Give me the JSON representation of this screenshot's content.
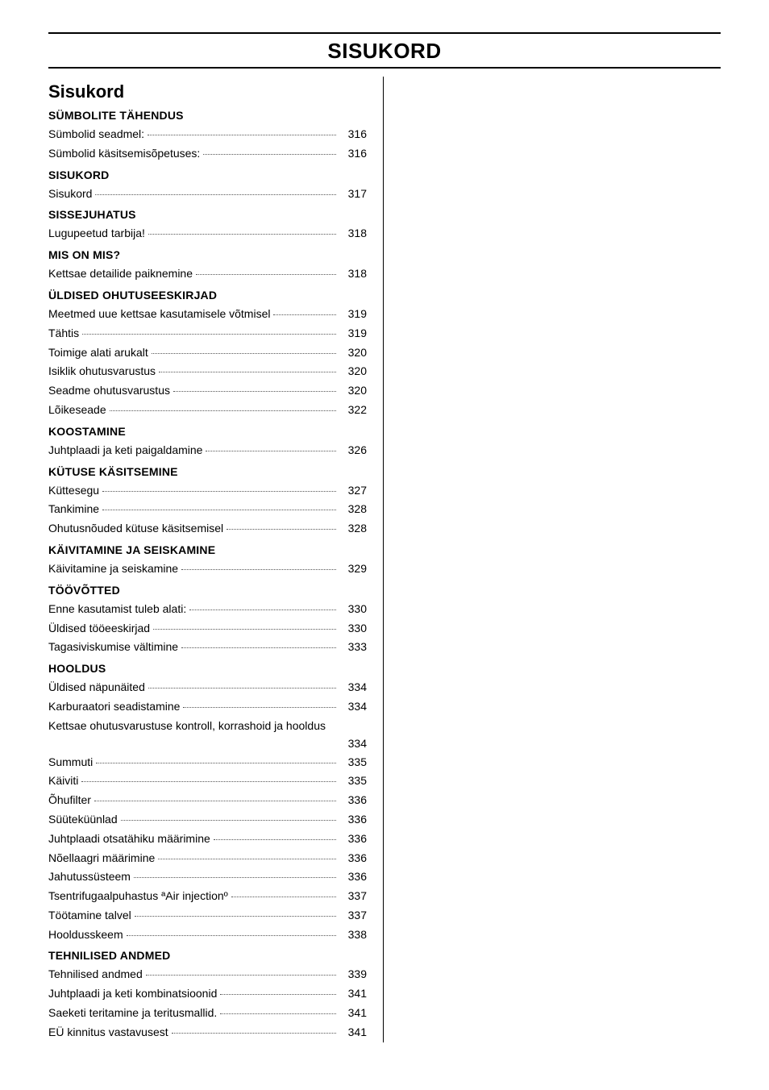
{
  "page_title": "SISUKORD",
  "subtitle": "Sisukord",
  "toc": [
    {
      "type": "section",
      "text": "SÜMBOLITE TÄHENDUS"
    },
    {
      "type": "entry",
      "label": "Sümbolid seadmel:",
      "page": "316"
    },
    {
      "type": "entry",
      "label": "Sümbolid käsitsemisõpetuses:",
      "page": "316"
    },
    {
      "type": "section",
      "text": "SISUKORD"
    },
    {
      "type": "entry",
      "label": "Sisukord",
      "page": "317"
    },
    {
      "type": "section",
      "text": "SISSEJUHATUS"
    },
    {
      "type": "entry",
      "label": "Lugupeetud tarbija!",
      "page": "318"
    },
    {
      "type": "section",
      "text": "MIS ON MIS?"
    },
    {
      "type": "entry",
      "label": "Kettsae detailide paiknemine",
      "page": "318"
    },
    {
      "type": "section",
      "text": "ÜLDISED OHUTUSEESKIRJAD"
    },
    {
      "type": "entry",
      "label": "Meetmed uue kettsae kasutamisele võtmisel",
      "page": "319"
    },
    {
      "type": "entry",
      "label": "Tähtis",
      "page": "319"
    },
    {
      "type": "entry",
      "label": "Toimige alati arukalt",
      "page": "320"
    },
    {
      "type": "entry",
      "label": "Isiklik ohutusvarustus",
      "page": "320"
    },
    {
      "type": "entry",
      "label": "Seadme ohutusvarustus",
      "page": "320"
    },
    {
      "type": "entry",
      "label": "Lõikeseade",
      "page": "322"
    },
    {
      "type": "section",
      "text": "KOOSTAMINE"
    },
    {
      "type": "entry",
      "label": "Juhtplaadi ja keti paigaldamine",
      "page": "326"
    },
    {
      "type": "section",
      "text": "KÜTUSE KÄSITSEMINE"
    },
    {
      "type": "entry",
      "label": "Küttesegu",
      "page": "327"
    },
    {
      "type": "entry",
      "label": "Tankimine",
      "page": "328"
    },
    {
      "type": "entry",
      "label": "Ohutusnõuded kütuse käsitsemisel",
      "page": "328"
    },
    {
      "type": "section",
      "text": "KÄIVITAMINE JA SEISKAMINE"
    },
    {
      "type": "entry",
      "label": "Käivitamine ja seiskamine",
      "page": "329"
    },
    {
      "type": "section",
      "text": "TÖÖVÕTTED"
    },
    {
      "type": "entry",
      "label": "Enne kasutamist tuleb alati:",
      "page": "330"
    },
    {
      "type": "entry",
      "label": "Üldised tööeeskirjad",
      "page": "330"
    },
    {
      "type": "entry",
      "label": "Tagasiviskumise vältimine",
      "page": "333"
    },
    {
      "type": "section",
      "text": "HOOLDUS"
    },
    {
      "type": "entry",
      "label": "Üldised näpunäited",
      "page": "334"
    },
    {
      "type": "entry",
      "label": "Karburaatori seadistamine",
      "page": "334"
    },
    {
      "type": "wrap",
      "label": "Kettsae ohutusvarustuse kontroll, korrashoid ja hooldus",
      "page": "334"
    },
    {
      "type": "entry",
      "label": "Summuti",
      "page": "335"
    },
    {
      "type": "entry",
      "label": "Käiviti",
      "page": "335"
    },
    {
      "type": "entry",
      "label": "Õhufilter",
      "page": "336"
    },
    {
      "type": "entry",
      "label": "Süüteküünlad",
      "page": "336"
    },
    {
      "type": "entry",
      "label": "Juhtplaadi otsatähiku määrimine",
      "page": "336"
    },
    {
      "type": "entry",
      "label": "Nõellaagri määrimine",
      "page": "336"
    },
    {
      "type": "entry",
      "label": "Jahutussüsteem",
      "page": "336"
    },
    {
      "type": "entry",
      "label": "Tsentrifugaalpuhastus ªAir injectionº",
      "page": "337"
    },
    {
      "type": "entry",
      "label": "Töötamine talvel",
      "page": "337"
    },
    {
      "type": "entry",
      "label": "Hooldusskeem",
      "page": "338"
    },
    {
      "type": "section",
      "text": "TEHNILISED ANDMED"
    },
    {
      "type": "entry",
      "label": "Tehnilised andmed",
      "page": "339"
    },
    {
      "type": "entry",
      "label": "Juhtplaadi ja keti kombinatsioonid",
      "page": "341"
    },
    {
      "type": "entry",
      "label": "Saeketi teritamine ja teritusmallid.",
      "page": "341"
    },
    {
      "type": "entry",
      "label": "EÜ kinnitus vastavusest",
      "page": "341"
    }
  ]
}
